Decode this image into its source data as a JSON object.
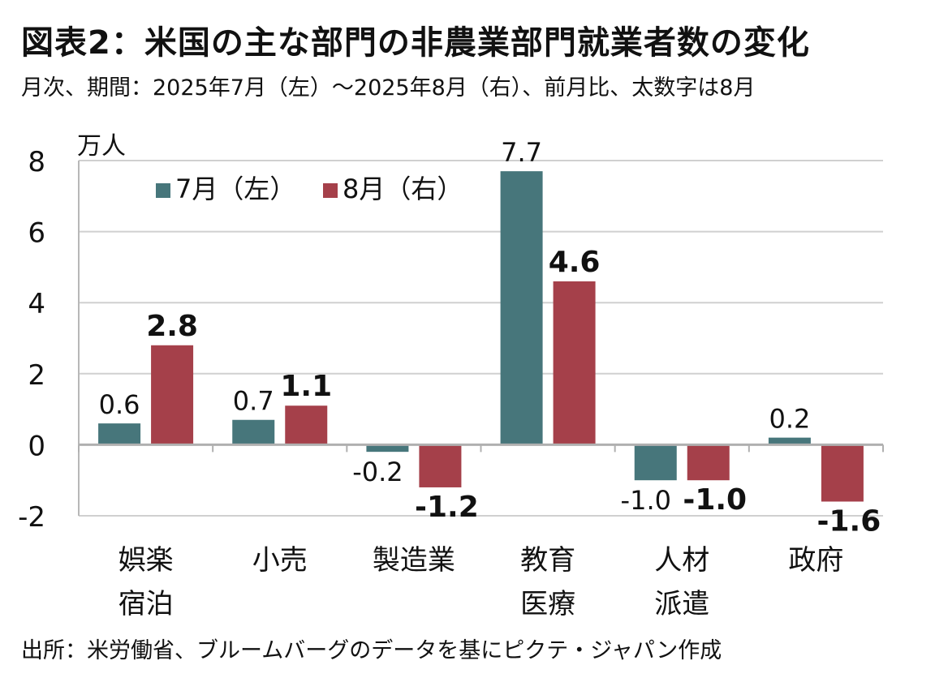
{
  "header": {
    "title": "図表2：米国の主な部門の非農業部門就業者数の変化",
    "subtitle": "月次、期間：2025年7月（左）～2025年8月（右）、前月比、太数字は8月"
  },
  "footer": {
    "source": "出所：米労働省、ブルームバーグのデータを基にピクテ・ジャパン作成"
  },
  "chart_data": {
    "type": "bar",
    "unit_label": "万人",
    "categories": [
      [
        "娯楽",
        "宿泊"
      ],
      [
        "小売"
      ],
      [
        "製造業"
      ],
      [
        "教育",
        "医療"
      ],
      [
        "人材",
        "派遣"
      ],
      [
        "政府"
      ]
    ],
    "series": [
      {
        "name": "7月（左）",
        "color": "#47767B",
        "values": [
          0.6,
          0.7,
          -0.2,
          7.7,
          -1.0,
          0.2
        ],
        "labels": [
          "0.6",
          "0.7",
          "-0.2",
          "7.7",
          "-1.0",
          "0.2"
        ],
        "bold": false
      },
      {
        "name": "8月（右）",
        "color": "#A5404A",
        "values": [
          2.8,
          1.1,
          -1.2,
          4.6,
          -1.0,
          -1.6
        ],
        "labels": [
          "2.8",
          "1.1",
          "-1.2",
          "4.6",
          "-1.0",
          "-1.6"
        ],
        "bold": true
      }
    ],
    "yticks": [
      "8",
      "6",
      "4",
      "2",
      "0",
      "-2"
    ],
    "ylim": [
      -2,
      8
    ],
    "grid": true,
    "legend_position": "top-left"
  }
}
